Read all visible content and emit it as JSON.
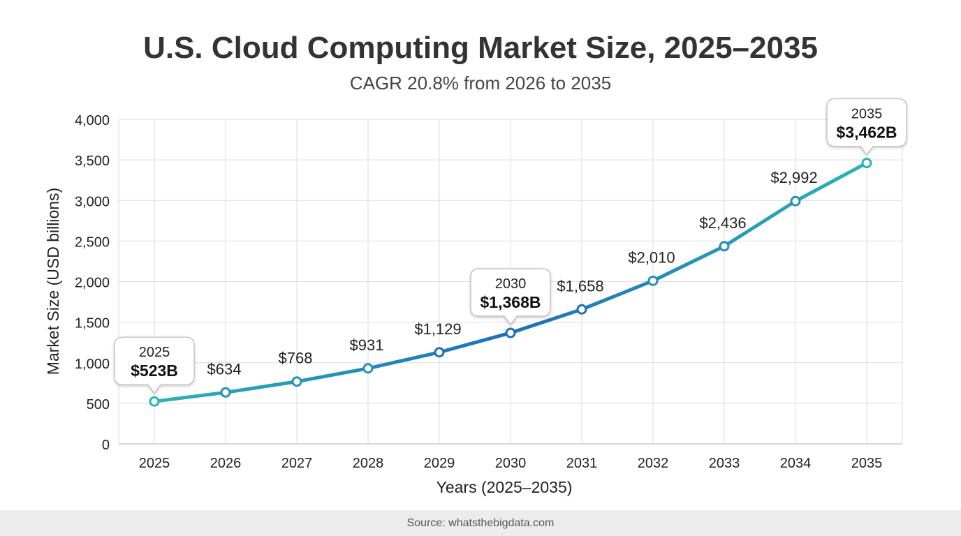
{
  "chart_data": {
    "type": "line",
    "title": "U.S. Cloud Computing Market Size, 2025–2035",
    "subtitle": "CAGR 20.8% from 2026 to 2035",
    "xlabel": "Years (2025–2035)",
    "ylabel": "Market Size (USD billions)",
    "categories": [
      "2025",
      "2026",
      "2027",
      "2028",
      "2029",
      "2030",
      "2031",
      "2032",
      "2033",
      "2034",
      "2035"
    ],
    "values": [
      523,
      634,
      768,
      931,
      1129,
      1368,
      1658,
      2010,
      2436,
      2992,
      3462
    ],
    "data_labels": [
      "$523B",
      "$634",
      "$768",
      "$931",
      "$1,129",
      "$1,368B",
      "$1,658",
      "$2,010",
      "$2,436",
      "$2,992",
      "$3,462B"
    ],
    "highlights": [
      {
        "index": 0,
        "year": "2025",
        "value_label": "$523B"
      },
      {
        "index": 5,
        "year": "2030",
        "value_label": "$1,368B"
      },
      {
        "index": 10,
        "year": "2035",
        "value_label": "$3,462B"
      }
    ],
    "ylim": [
      0,
      4000
    ],
    "yticks": [
      0,
      500,
      1000,
      1500,
      2000,
      2500,
      3000,
      3500,
      4000
    ],
    "ytick_labels": [
      "0",
      "500",
      "1,000",
      "1,500",
      "2,000",
      "2,500",
      "3,000",
      "3,500",
      "4,000"
    ],
    "grid": true,
    "legend": "none",
    "colors": {
      "line_start": "#2bb3b7",
      "line_mid": "#1f6fb8",
      "line_end": "#2bb3b7",
      "grid": "#dddddd",
      "axis": "#cccccc"
    }
  },
  "footer": {
    "source": "Source: whatsthebigdata.com"
  }
}
